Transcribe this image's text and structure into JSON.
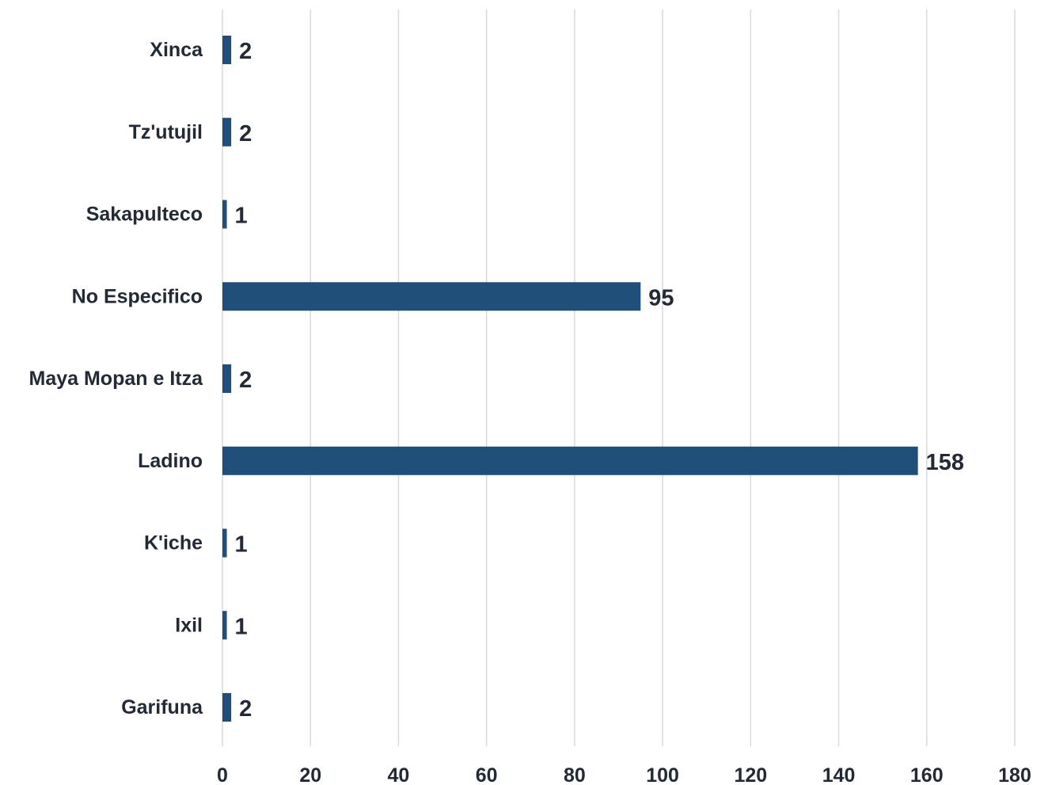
{
  "chart_data": {
    "type": "bar",
    "orientation": "horizontal",
    "categories": [
      "Xinca",
      "Tz'utujil",
      "Sakapulteco",
      "No Especifico",
      "Maya Mopan e Itza",
      "Ladino",
      "K'iche",
      "Ixil",
      "Garifuna"
    ],
    "values": [
      2,
      2,
      1,
      95,
      2,
      158,
      1,
      1,
      2
    ],
    "data_labels": [
      "2",
      "2",
      "1",
      "95",
      "2",
      "158",
      "1",
      "1",
      "2"
    ],
    "x_ticks": [
      0,
      20,
      40,
      60,
      80,
      100,
      120,
      140,
      160,
      180
    ],
    "xlim": [
      0,
      180
    ],
    "grid": "vertical",
    "legend": "none",
    "title": "",
    "xlabel": "",
    "ylabel": "",
    "bar_color": "#1f4e79",
    "text_color": "#222a35",
    "grid_color": "#d9d9d9"
  }
}
